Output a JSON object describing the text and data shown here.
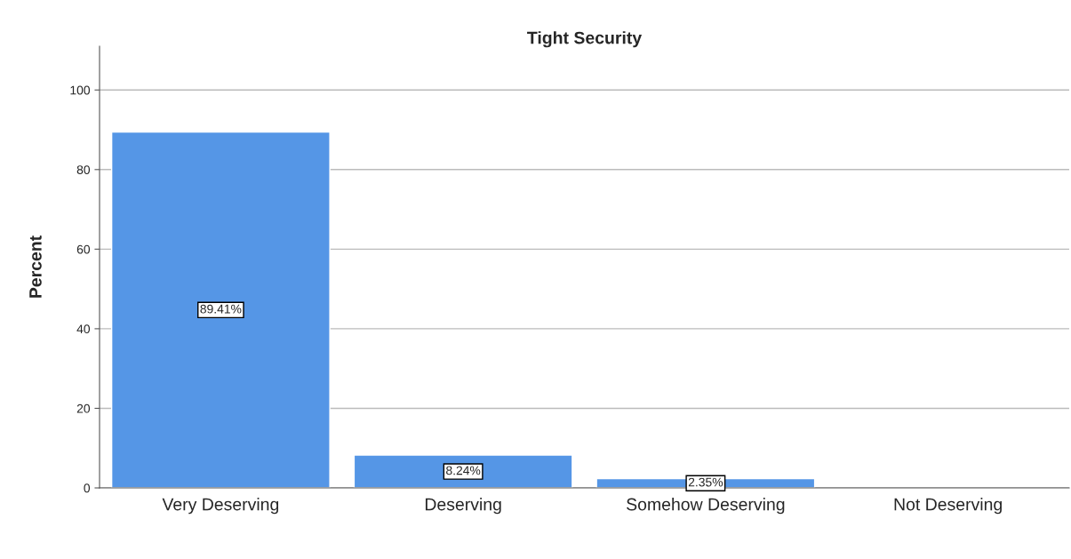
{
  "chart_data": {
    "type": "bar",
    "title": "Tight Security",
    "ylabel": "Percent",
    "categories": [
      "Very Deserving",
      "Deserving",
      "Somehow Deserving",
      "Not Deserving"
    ],
    "values": [
      89.41,
      8.24,
      2.35,
      null
    ],
    "value_labels": [
      "89.41%",
      "8.24%",
      "2.35%",
      null
    ],
    "color": "#5596e6",
    "ylim": [
      0,
      111
    ],
    "yticks": [
      0,
      20,
      40,
      60,
      80,
      100
    ],
    "grid": "y"
  }
}
